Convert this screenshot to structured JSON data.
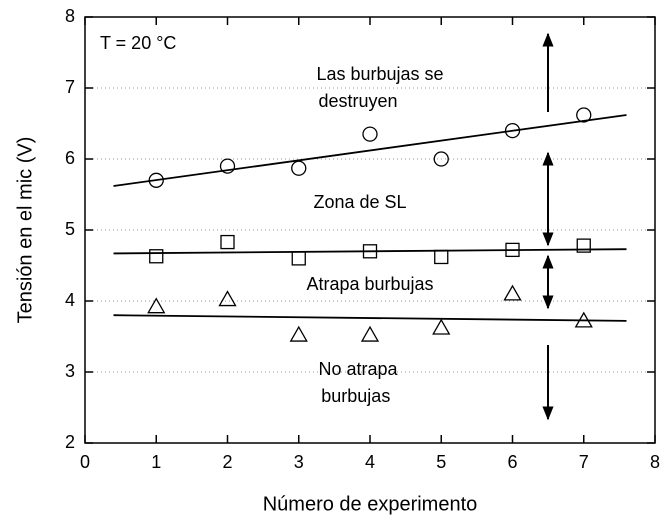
{
  "chart_data": {
    "type": "scatter",
    "xlabel": "Número de experimento",
    "ylabel": "Tensión en el mic (V)",
    "xlim": [
      0,
      8
    ],
    "xticks": [
      0,
      1,
      2,
      3,
      4,
      5,
      6,
      7,
      8
    ],
    "ylim": [
      2,
      8
    ],
    "yticks": [
      2,
      3,
      4,
      5,
      6,
      7,
      8
    ],
    "grid": true,
    "series": [
      {
        "marker": "circle",
        "color": "#000000",
        "x": [
          1,
          2,
          3,
          4,
          5,
          6,
          7
        ],
        "values": [
          5.7,
          5.9,
          5.87,
          6.35,
          6.0,
          6.4,
          6.62
        ]
      },
      {
        "marker": "square",
        "color": "#000000",
        "x": [
          1,
          2,
          3,
          4,
          5,
          6,
          7
        ],
        "values": [
          4.63,
          4.83,
          4.6,
          4.7,
          4.62,
          4.72,
          4.78
        ]
      },
      {
        "marker": "triangle",
        "color": "#000000",
        "x": [
          1,
          2,
          3,
          4,
          5,
          6,
          7
        ],
        "values": [
          3.92,
          4.02,
          3.52,
          3.52,
          3.62,
          4.1,
          3.72
        ]
      },
      {
        "marker": "line",
        "color": "#000000",
        "x": [
          0.4,
          7.6
        ],
        "values": [
          5.62,
          6.62
        ]
      },
      {
        "marker": "line",
        "color": "#000000",
        "x": [
          0.4,
          7.6
        ],
        "values": [
          4.67,
          4.73
        ]
      },
      {
        "marker": "line",
        "color": "#000000",
        "x": [
          0.4,
          7.6
        ],
        "values": [
          3.8,
          3.72
        ]
      }
    ],
    "annotations": [
      {
        "lines": [
          "T = 20 °C"
        ]
      },
      {
        "lines": [
          "Las burbujas se",
          "destruyen"
        ]
      },
      {
        "lines": [
          "Zona de SL"
        ]
      },
      {
        "lines": [
          "Atrapa burbujas"
        ]
      },
      {
        "lines": [
          "No atrapa",
          "burbujas"
        ]
      }
    ]
  }
}
